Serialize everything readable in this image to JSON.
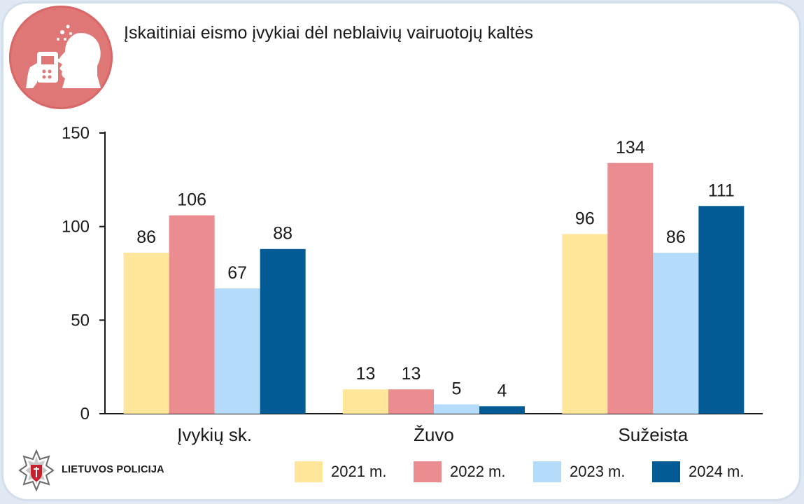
{
  "header": {
    "title": "Įskaitiniai eismo įvykiai dėl neblaivių vairuotojų kaltės",
    "badge_icon": "breathalyzer-test-icon"
  },
  "footer": {
    "logo_icon": "lietuvos-policija-star-icon",
    "logo_text": "LIETUVOS POLICIJA"
  },
  "colors": {
    "badge": "#e07777",
    "axis": "#1a1a1a"
  },
  "chart_data": {
    "type": "bar",
    "title": "Įskaitiniai eismo įvykiai dėl neblaivių vairuotojų kaltės",
    "categories": [
      "Įvykių sk.",
      "Žuvo",
      "Sužeista"
    ],
    "series": [
      {
        "name": "2021 m.",
        "color": "#ffe69a",
        "values": [
          86,
          13,
          96
        ]
      },
      {
        "name": "2022 m.",
        "color": "#eb8c90",
        "values": [
          106,
          13,
          134
        ]
      },
      {
        "name": "2023 m.",
        "color": "#b4dcfa",
        "values": [
          67,
          5,
          86
        ]
      },
      {
        "name": "2024 m.",
        "color": "#035b96",
        "values": [
          88,
          4,
          111
        ]
      }
    ],
    "yticks": [
      0,
      50,
      100,
      150
    ],
    "ylim": [
      0,
      150
    ],
    "xlabel": "",
    "ylabel": "",
    "grid": false,
    "legend": "bottom-right",
    "data_labels": true
  }
}
